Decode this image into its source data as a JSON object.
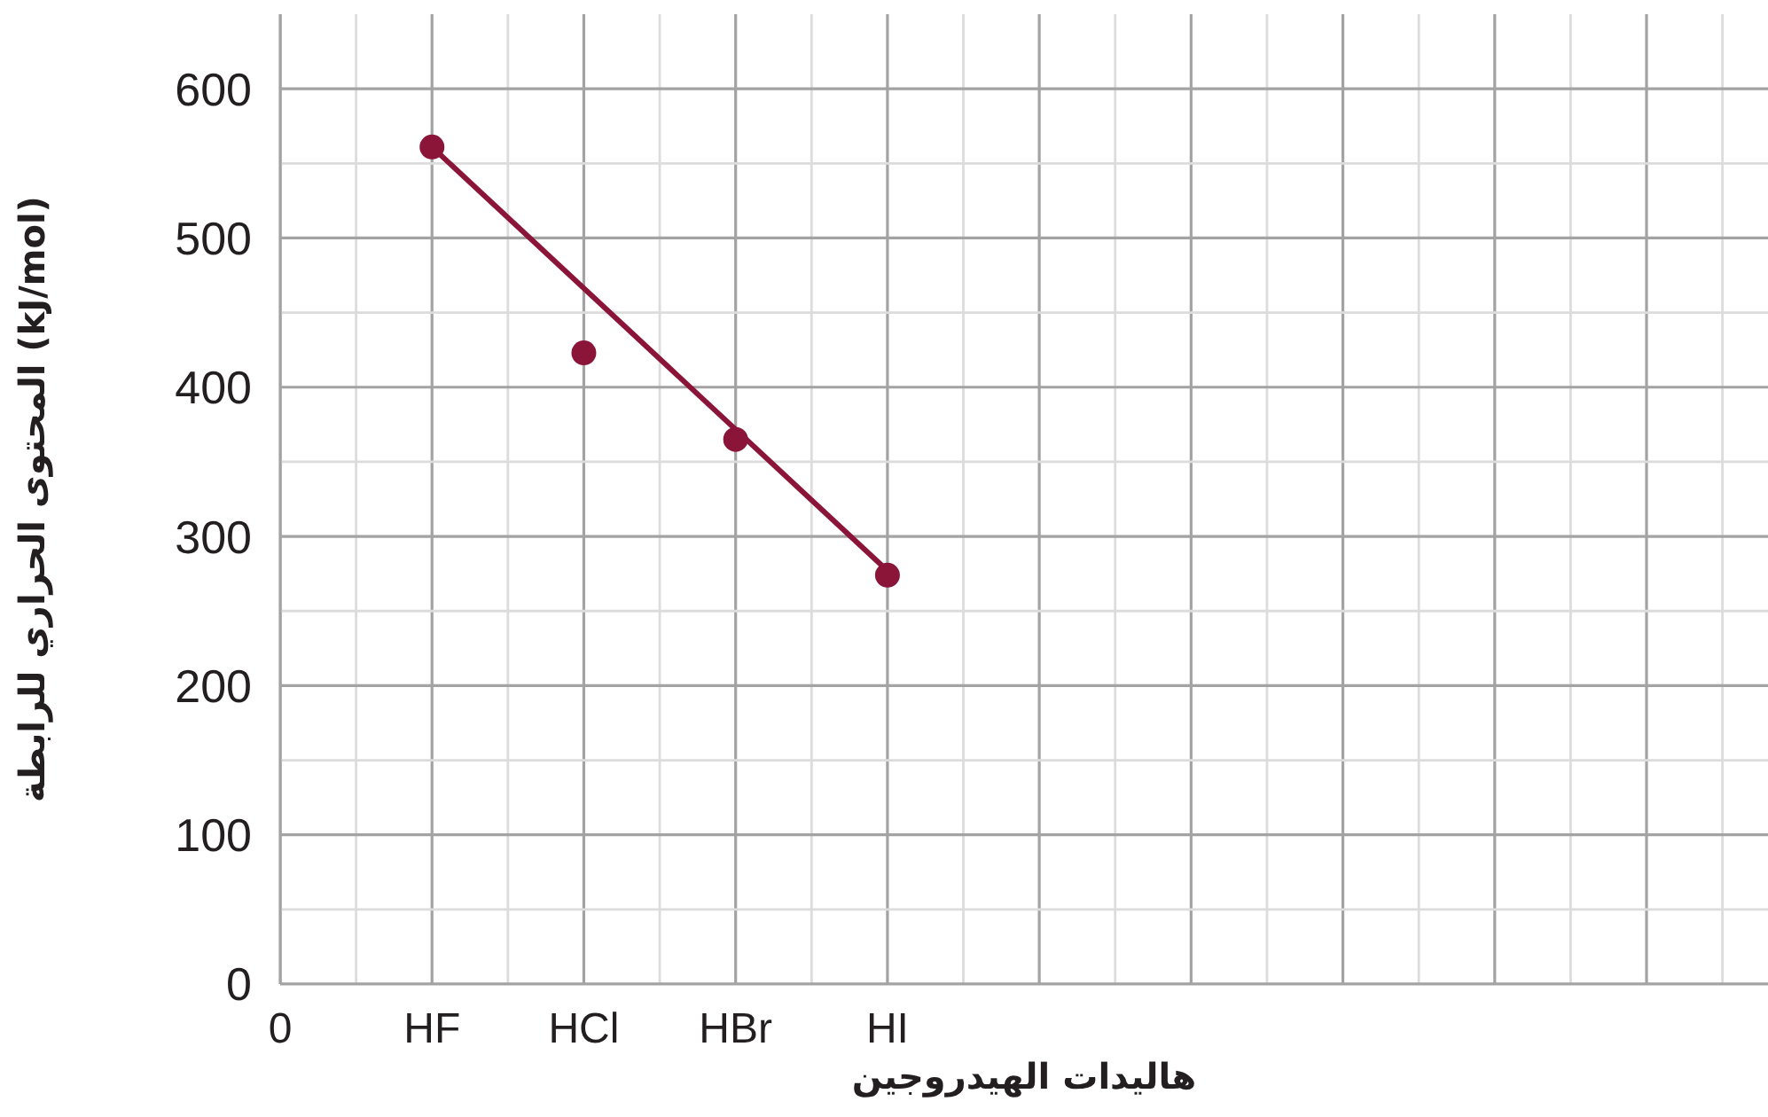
{
  "chart_data": {
    "type": "scatter",
    "xlabel": "هاليدات الهيدروجين",
    "ylabel": "المحتوى الحراري للرابطة (kJ/mol)",
    "categories": [
      "0",
      "HF",
      "HCl",
      "HBr",
      "HI",
      null,
      null,
      null,
      null,
      null
    ],
    "series": [
      {
        "color": "#8b1538",
        "values": [
          null,
          561,
          423,
          365,
          274,
          null,
          null,
          null,
          null,
          null
        ]
      },
      {
        "type": "line",
        "color": "#8b1538",
        "values": [
          null,
          561,
          null,
          null,
          277,
          null,
          null,
          null,
          null,
          null
        ],
        "marker": "none"
      }
    ],
    "ylim": [
      0,
      650
    ],
    "yticks": [
      0,
      {
        "value": 50,
        "label": null
      },
      100,
      {
        "value": 150,
        "label": null
      },
      200,
      {
        "value": 250,
        "label": null
      },
      300,
      {
        "value": 350,
        "label": null
      },
      400,
      {
        "value": 450,
        "label": null
      },
      500,
      {
        "value": 550,
        "label": null
      },
      600
    ],
    "grid": true,
    "marker": "circle",
    "legend": false
  }
}
